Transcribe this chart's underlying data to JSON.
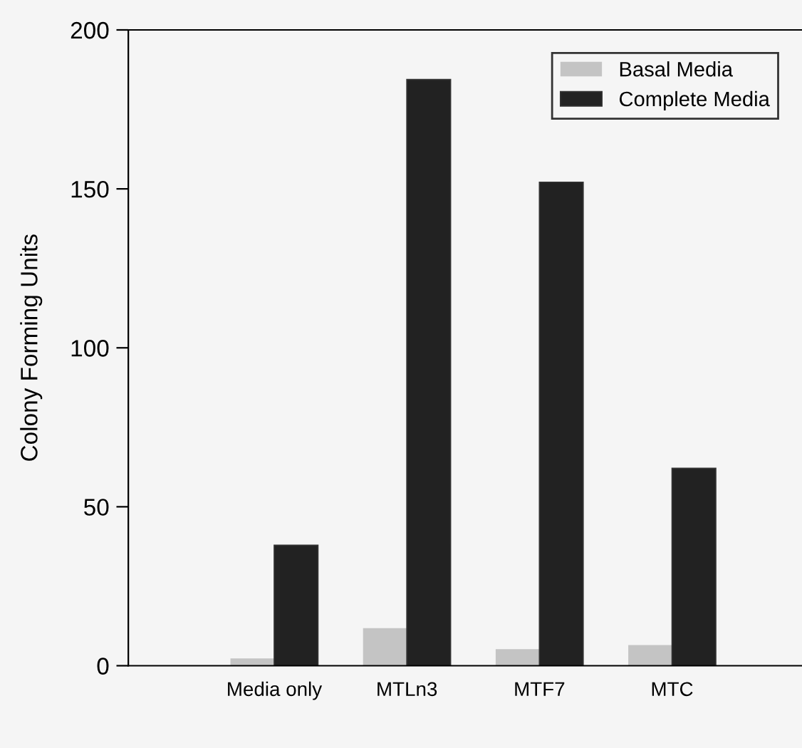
{
  "chart_data": {
    "type": "bar",
    "ylabel": "Colony Forming Units",
    "categories": [
      "Media only",
      "MTLn3",
      "MTF7",
      "MTC"
    ],
    "series": [
      {
        "name": "Basal Media",
        "color": "#c4c4c4",
        "values": [
          2.3,
          11.8,
          5.2,
          6.5
        ]
      },
      {
        "name": "Complete Media",
        "color": "#222222",
        "values": [
          37.9,
          184.4,
          152.1,
          62.1
        ]
      }
    ],
    "ylim": [
      0,
      200
    ],
    "yticks": [
      0,
      50,
      100,
      150,
      200
    ],
    "grid": false,
    "legend": "top right"
  }
}
